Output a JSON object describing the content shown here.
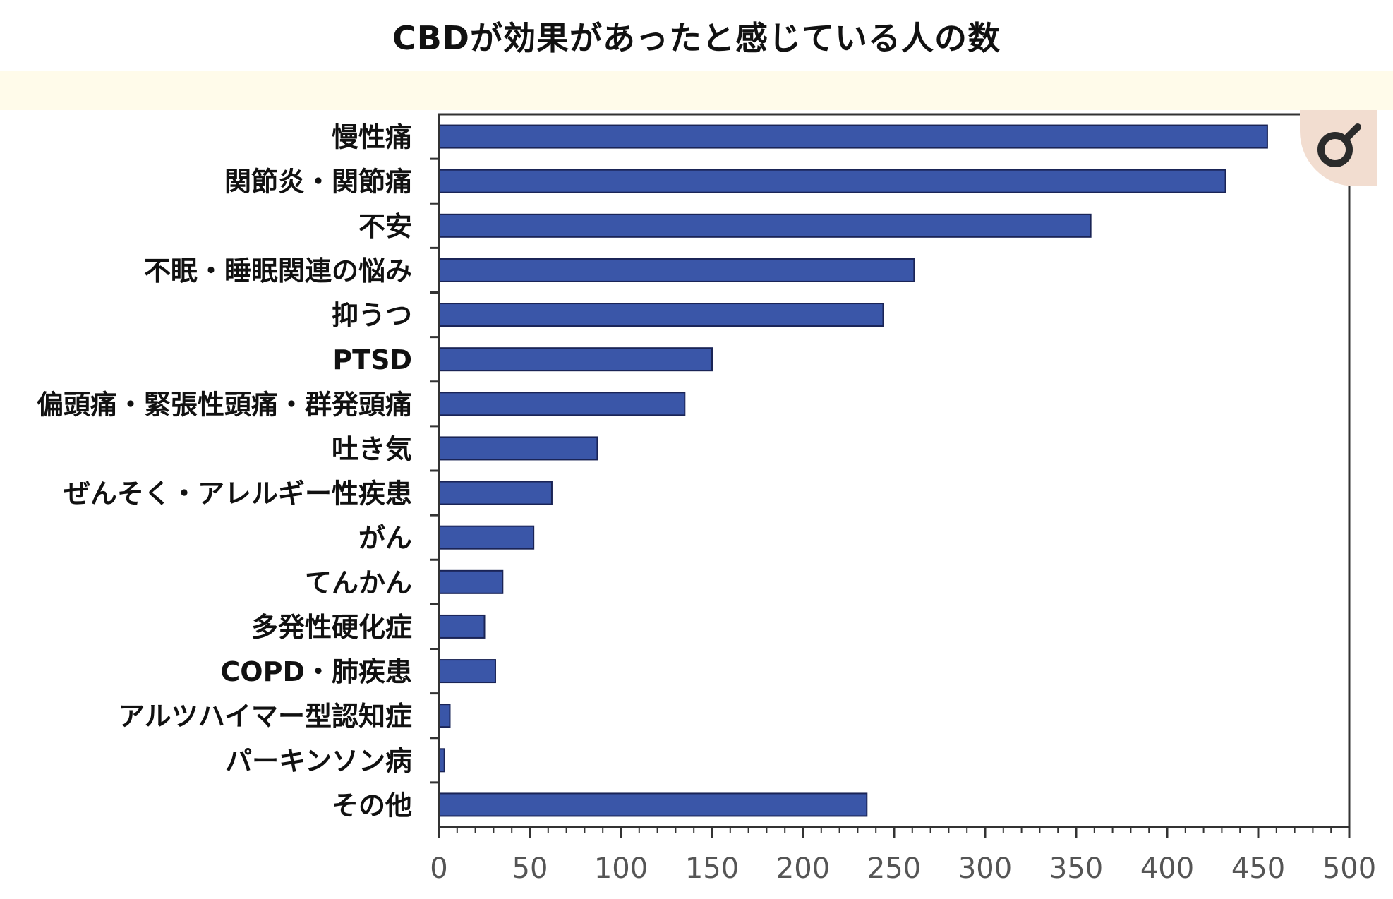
{
  "title": "CBDが効果があったと感じている人の数",
  "chart_data": {
    "type": "bar",
    "orientation": "horizontal",
    "categories": [
      "慢性痛",
      "関節炎・関節痛",
      "不安",
      "不眠・睡眠関連の悩み",
      "抑うつ",
      "PTSD",
      "偏頭痛・緊張性頭痛・群発頭痛",
      "吐き気",
      "ぜんそく・アレルギー性疾患",
      "がん",
      "てんかん",
      "多発性硬化症",
      "COPD・肺疾患",
      "アルツハイマー型認知症",
      "パーキンソン病",
      "その他"
    ],
    "values": [
      455,
      432,
      358,
      261,
      244,
      150,
      135,
      87,
      62,
      52,
      35,
      25,
      31,
      6,
      3,
      235
    ],
    "xlim": [
      0,
      500
    ],
    "xticks": [
      "0",
      "50",
      "100",
      "150",
      "200",
      "250",
      "300",
      "350",
      "400",
      "450",
      "500"
    ],
    "bar_color": "#3a56a8",
    "grid": false
  },
  "badge": {
    "icon": "magnifier-icon"
  }
}
